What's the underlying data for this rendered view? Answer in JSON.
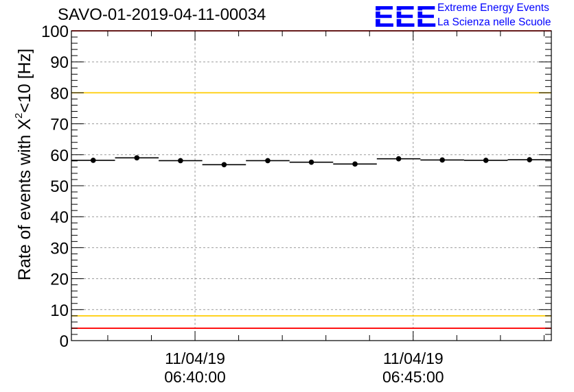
{
  "chart_data": {
    "type": "scatter",
    "title": "SAVO-01-2019-04-11-00034",
    "ylabel": {
      "prefix": "Rate of events with X",
      "sup": "2",
      "suffix": "<10 [Hz]"
    },
    "xlabel": "",
    "ylim": [
      0,
      100
    ],
    "yticks": [
      "0",
      "10",
      "20",
      "30",
      "40",
      "50",
      "60",
      "70",
      "80",
      "90",
      "100"
    ],
    "grid": true,
    "xticks": [
      {
        "date": "11/04/19",
        "time": "06:40:00",
        "seconds_from_start": 170
      },
      {
        "date": "11/04/19",
        "time": "06:45:00",
        "seconds_from_start": 470
      }
    ],
    "xrange_seconds": [
      0,
      660
    ],
    "bin_width_seconds": 60,
    "series": [
      {
        "name": "Rate of events with X2<10",
        "x_seconds": [
          30,
          90,
          150,
          210,
          270,
          330,
          390,
          450,
          510,
          570,
          630
        ],
        "values": [
          58.2,
          59.0,
          58.1,
          56.8,
          58.1,
          57.6,
          57.0,
          58.7,
          58.3,
          58.2,
          58.4
        ],
        "errors": [
          0.8,
          0.8,
          0.8,
          0.8,
          0.8,
          0.8,
          0.8,
          0.8,
          0.8,
          0.8,
          0.8
        ]
      }
    ],
    "reference_lines": [
      {
        "name": "red-upper",
        "y": 100,
        "color": "#ff0000"
      },
      {
        "name": "yellow-upper",
        "y": 80,
        "color": "#ffcc00"
      },
      {
        "name": "yellow-lower",
        "y": 8,
        "color": "#ffcc00"
      },
      {
        "name": "red-lower",
        "y": 4,
        "color": "#ff0000"
      }
    ]
  },
  "logo": {
    "mark": "EEE",
    "line1": "Extreme Energy Events",
    "line2": "La Scienza nelle Scuole",
    "color": "#0000ff"
  }
}
